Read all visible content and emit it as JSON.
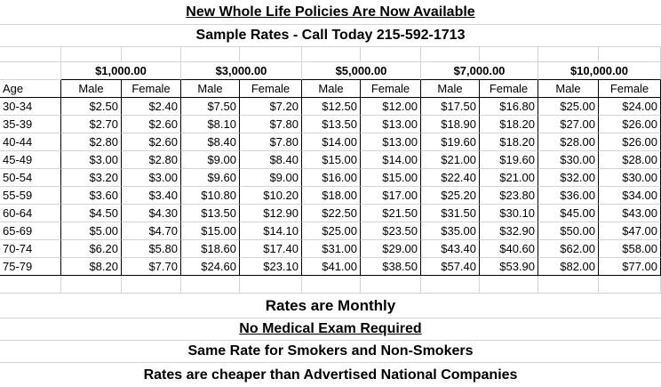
{
  "header": {
    "title": "New Whole Life Policies Are Now Available",
    "subtitle": "Sample Rates - Call Today 215-592-1713"
  },
  "table": {
    "coverage_amounts": [
      "$1,000.00",
      "$3,000.00",
      "$5,000.00",
      "$7,000.00",
      "$10,000.00"
    ],
    "age_header": "Age",
    "sex_headers": [
      "Male",
      "Female",
      "Male",
      "Female",
      "Male",
      "Female",
      "Male",
      "Female",
      "Male",
      "Female"
    ],
    "rows": [
      {
        "age": "30-34",
        "rates": [
          "$2.50",
          "$2.40",
          "$7.50",
          "$7.20",
          "$12.50",
          "$12.00",
          "$17.50",
          "$16.80",
          "$25.00",
          "$24.00"
        ]
      },
      {
        "age": "35-39",
        "rates": [
          "$2.70",
          "$2.60",
          "$8.10",
          "$7.80",
          "$13.50",
          "$13.00",
          "$18.90",
          "$18.20",
          "$27.00",
          "$26.00"
        ]
      },
      {
        "age": "40-44",
        "rates": [
          "$2.80",
          "$2.60",
          "$8.40",
          "$7.80",
          "$14.00",
          "$13.00",
          "$19.60",
          "$18.20",
          "$28.00",
          "$26.00"
        ]
      },
      {
        "age": "45-49",
        "rates": [
          "$3.00",
          "$2.80",
          "$9.00",
          "$8.40",
          "$15.00",
          "$14.00",
          "$21.00",
          "$19.60",
          "$30.00",
          "$28.00"
        ]
      },
      {
        "age": "50-54",
        "rates": [
          "$3.20",
          "$3.00",
          "$9.60",
          "$9.00",
          "$16.00",
          "$15.00",
          "$22.40",
          "$21.00",
          "$32.00",
          "$30.00"
        ]
      },
      {
        "age": "55-59",
        "rates": [
          "$3.60",
          "$3.40",
          "$10.80",
          "$10.20",
          "$18.00",
          "$17.00",
          "$25.20",
          "$23.80",
          "$36.00",
          "$34.00"
        ]
      },
      {
        "age": "60-64",
        "rates": [
          "$4.50",
          "$4.30",
          "$13.50",
          "$12.90",
          "$22.50",
          "$21.50",
          "$31.50",
          "$30.10",
          "$45.00",
          "$43.00"
        ]
      },
      {
        "age": "65-69",
        "rates": [
          "$5.00",
          "$4.70",
          "$15.00",
          "$14.10",
          "$25.00",
          "$23.50",
          "$35.00",
          "$32.90",
          "$50.00",
          "$47.00"
        ]
      },
      {
        "age": "70-74",
        "rates": [
          "$6.20",
          "$5.80",
          "$18.60",
          "$17.40",
          "$31.00",
          "$29.00",
          "$43.40",
          "$40.60",
          "$62.00",
          "$58.00"
        ]
      },
      {
        "age": "75-79",
        "rates": [
          "$8.20",
          "$7.70",
          "$24.60",
          "$23.10",
          "$41.00",
          "$38.50",
          "$57.40",
          "$53.90",
          "$82.00",
          "$77.00"
        ]
      }
    ]
  },
  "footer": {
    "line1": "Rates are Monthly",
    "line2": "No Medical Exam Required",
    "line3": "Same Rate for Smokers and Non-Smokers",
    "line4": "Rates are cheaper than Advertised National Companies"
  }
}
